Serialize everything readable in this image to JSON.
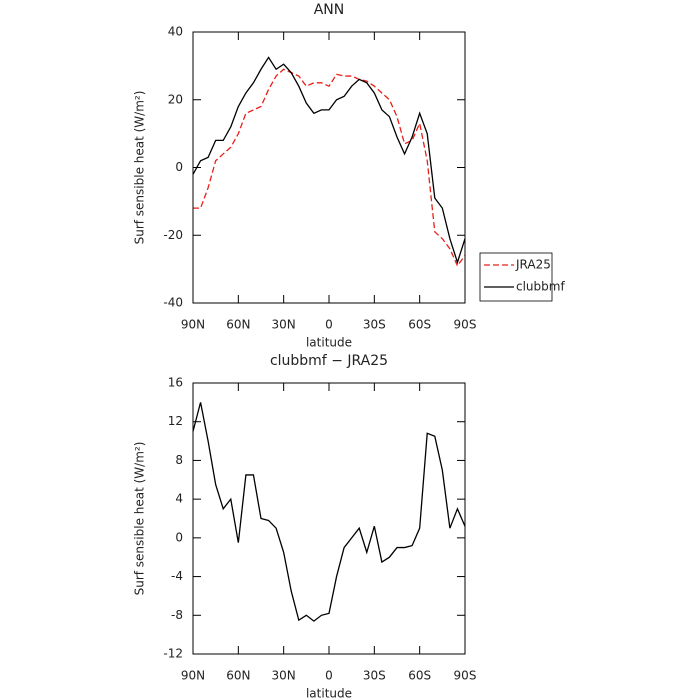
{
  "chart_data": [
    {
      "type": "line",
      "title": "ANN",
      "xlabel": "latitude",
      "ylabel": "Surf sensible heat (W/m²)",
      "x": [
        90,
        85,
        80,
        75,
        70,
        65,
        60,
        55,
        50,
        45,
        40,
        35,
        30,
        25,
        20,
        15,
        10,
        5,
        0,
        -5,
        -10,
        -15,
        -20,
        -25,
        -30,
        -35,
        -40,
        -45,
        -50,
        -55,
        -60,
        -65,
        -70,
        -75,
        -80,
        -85,
        -90
      ],
      "series": [
        {
          "name": "JRA25",
          "color": "#e8201a",
          "line_style": "dashed",
          "values": [
            -12,
            -12,
            -6,
            2,
            4,
            6,
            10,
            16,
            17,
            18,
            23,
            27,
            29,
            28,
            27,
            24,
            25,
            25,
            24,
            27.5,
            27,
            27,
            26,
            25.5,
            24,
            22,
            20,
            15,
            7,
            8,
            13,
            2,
            -19,
            -21,
            -24,
            -29,
            -26
          ]
        },
        {
          "name": "clubbmf",
          "color": "#000000",
          "line_style": "solid",
          "values": [
            -2,
            2,
            3,
            8,
            8,
            12,
            18,
            22,
            25,
            29,
            32.5,
            29,
            30.5,
            28,
            24,
            19,
            16,
            17,
            17,
            20,
            21,
            24,
            26,
            25,
            22,
            17,
            15,
            9,
            4,
            9,
            16,
            10,
            -9,
            -12,
            -21,
            -28,
            -21
          ]
        }
      ],
      "xlim": [
        90,
        -90
      ],
      "xticks": [
        {
          "value": 90,
          "label": "90N"
        },
        {
          "value": 60,
          "label": "60N"
        },
        {
          "value": 30,
          "label": "30N"
        },
        0,
        {
          "value": -30,
          "label": "30S"
        },
        {
          "value": -60,
          "label": "60S"
        },
        {
          "value": -90,
          "label": "90S"
        }
      ],
      "ylim": [
        -40,
        40
      ],
      "yticks": [
        -40,
        -20,
        0,
        20,
        40
      ],
      "legend": "right"
    },
    {
      "type": "line",
      "title": "clubbmf − JRA25",
      "xlabel": "latitude",
      "ylabel": "Surf sensible heat (W/m²)",
      "x": [
        90,
        85,
        80,
        75,
        70,
        65,
        60,
        55,
        50,
        45,
        40,
        35,
        30,
        25,
        20,
        15,
        10,
        5,
        0,
        -5,
        -10,
        -15,
        -20,
        -25,
        -30,
        -35,
        -40,
        -45,
        -50,
        -55,
        -60,
        -65,
        -70,
        -75,
        -80,
        -85,
        -90
      ],
      "series": [
        {
          "color": "#000000",
          "line_style": "solid",
          "values": [
            11,
            14,
            10,
            5.5,
            3,
            4,
            -0.5,
            6.5,
            6.5,
            2,
            1.8,
            1,
            -1.5,
            -5.5,
            -8.5,
            -8,
            -8.6,
            -8,
            -7.8,
            -4,
            -1,
            0,
            1,
            -1.5,
            1.2,
            -2.5,
            -2,
            -1,
            -1,
            -0.8,
            1,
            10.8,
            10.5,
            7,
            1,
            3,
            1.2
          ]
        }
      ],
      "xlim": [
        90,
        -90
      ],
      "xticks": [
        {
          "value": 90,
          "label": "90N"
        },
        {
          "value": 60,
          "label": "60N"
        },
        {
          "value": 30,
          "label": "30N"
        },
        0,
        {
          "value": -30,
          "label": "30S"
        },
        {
          "value": -60,
          "label": "60S"
        },
        {
          "value": -90,
          "label": "90S"
        }
      ],
      "ylim": [
        -12,
        16
      ],
      "yticks": [
        -12,
        -8,
        -4,
        0,
        4,
        8,
        12,
        16
      ]
    }
  ]
}
